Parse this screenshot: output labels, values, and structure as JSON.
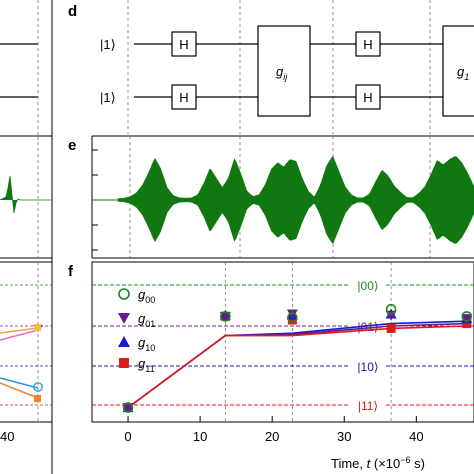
{
  "panel_labels": {
    "d": "d",
    "e": "e",
    "f": "f"
  },
  "circuit": {
    "qubit_labels": [
      "|1⟩",
      "|1⟩"
    ],
    "h_label": "H",
    "gate_label_main": "g",
    "gate_label_sub": "ij",
    "gate2_label_main": "g",
    "gate2_label_sub": "1"
  },
  "waveform": {
    "color": "#117711",
    "envelope": [
      0.03,
      0.04,
      0.08,
      0.16,
      0.34,
      0.62,
      0.95,
      0.7,
      0.28,
      0.1,
      0.05,
      0.04,
      0.05,
      0.12,
      0.38,
      0.72,
      0.5,
      0.28,
      0.5,
      0.95,
      0.6,
      0.2,
      0.08,
      0.12,
      0.35,
      0.7,
      0.85,
      0.75,
      0.92,
      0.88,
      0.5,
      0.2,
      0.06,
      0.35,
      0.78,
      1.0,
      0.65,
      0.3,
      0.12,
      0.05,
      0.05,
      0.14,
      0.42,
      0.68,
      0.55,
      0.32,
      0.18,
      0.06,
      0.05,
      0.15,
      0.3,
      0.58,
      0.9,
      0.8,
      0.92,
      1.0,
      0.85,
      0.6,
      0.3
    ]
  },
  "left_panels": {
    "tick_label": "40"
  },
  "chart_data": {
    "type": "line",
    "xlabel_main": "Time, ",
    "xlabel_var": "t",
    "xlabel_unit": " (×10",
    "xlabel_exp": "−6",
    "xlabel_end": " s)",
    "xlim": [
      -5,
      48
    ],
    "ylim": [
      0,
      1
    ],
    "x_ticks": [
      "0",
      "10",
      "20",
      "30",
      "40"
    ],
    "states": [
      {
        "label": "|00⟩",
        "color": "#1a8a1a"
      },
      {
        "label": "|01⟩",
        "color": "#7a1a8a"
      },
      {
        "label": "|10⟩",
        "color": "#1a1aa8"
      },
      {
        "label": "|11⟩",
        "color": "#d81a1a"
      }
    ],
    "legend": [
      {
        "name": "g",
        "sub": "00",
        "color": "#1a8a1a",
        "marker": "circle"
      },
      {
        "name": "g",
        "sub": "01",
        "color": "#6a1a8a",
        "marker": "triangle-down"
      },
      {
        "name": "g",
        "sub": "10",
        "color": "#1a1ad0",
        "marker": "triangle-up"
      },
      {
        "name": "g",
        "sub": "11",
        "color": "#e01a1a",
        "marker": "square"
      }
    ],
    "marker_x": [
      0,
      13.5,
      22.8,
      36.5,
      47
    ],
    "series": [
      {
        "color": "#1a8a1a",
        "marker": "circle",
        "values": [
          0.02,
          0.78,
          0.77,
          0.84,
          0.78
        ]
      },
      {
        "color": "#6a1a8a",
        "marker": "triangle-down",
        "values": [
          0.02,
          0.78,
          0.8,
          0.79,
          0.76
        ]
      },
      {
        "color": "#1a1ad0",
        "marker": "triangle-up",
        "values": [
          0.02,
          0.79,
          0.79,
          0.8,
          0.76
        ]
      },
      {
        "color": "#e01a1a",
        "marker": "square",
        "values": [
          0.02,
          0.78,
          0.75,
          0.68,
          0.72
        ]
      }
    ],
    "line_x": [
      0,
      13.5,
      22.8,
      36.5,
      47
    ],
    "lines": [
      {
        "color": "#1a1ad0",
        "values": [
          0.02,
          0.62,
          0.64,
          0.72,
          0.74
        ]
      },
      {
        "color": "#6a1a8a",
        "values": [
          0.02,
          0.62,
          0.63,
          0.7,
          0.72
        ]
      },
      {
        "color": "#e01a1a",
        "values": [
          0.02,
          0.62,
          0.62,
          0.68,
          0.7
        ]
      }
    ]
  }
}
